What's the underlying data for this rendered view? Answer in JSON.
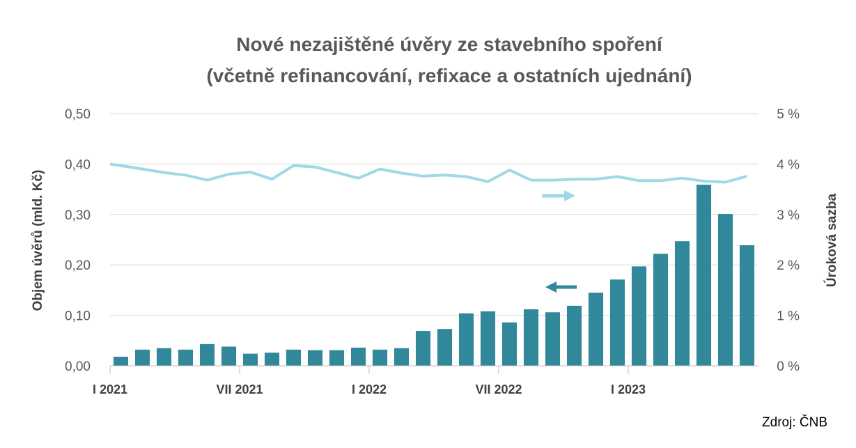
{
  "chart_data": {
    "type": "bar+line",
    "title_line1": "Nové nezajištěné úvěry ze stavebního spoření",
    "title_line2": "(včetně refinancování, refixace a ostatních ujednání)",
    "ylabel_left": "Objem úvěrů (mld. Kč)",
    "ylabel_right": "Úroková sazba",
    "source": "Zdroj: ČNB",
    "ylim_left": [
      0,
      0.5
    ],
    "ylim_right": [
      0,
      5
    ],
    "left_ticks": [
      "0,00",
      "0,10",
      "0,20",
      "0,30",
      "0,40",
      "0,50"
    ],
    "right_ticks": [
      "0 %",
      "1 %",
      "2 %",
      "3 %",
      "4 %",
      "5 %"
    ],
    "x_tick_labels": [
      {
        "index": 0,
        "label": "I 2021"
      },
      {
        "index": 6,
        "label": "VII 2021"
      },
      {
        "index": 12,
        "label": "I 2022"
      },
      {
        "index": 18,
        "label": "VII 2022"
      },
      {
        "index": 24,
        "label": "I 2023"
      }
    ],
    "grid": true,
    "colors": {
      "bars": "#31889a",
      "line": "#9fd8e6",
      "gridline": "#d9d9d9",
      "text": "#595959"
    },
    "series": [
      {
        "type": "bar",
        "axis": "left",
        "values": [
          0.018,
          0.032,
          0.035,
          0.032,
          0.043,
          0.038,
          0.024,
          0.026,
          0.032,
          0.031,
          0.031,
          0.036,
          0.032,
          0.035,
          0.069,
          0.073,
          0.104,
          0.108,
          0.086,
          0.112,
          0.106,
          0.119,
          0.145,
          0.171,
          0.197,
          0.222,
          0.247,
          0.359,
          0.301,
          0.239
        ]
      },
      {
        "type": "line",
        "axis": "right",
        "values": [
          4.0,
          3.9,
          3.83,
          3.78,
          3.68,
          3.8,
          3.84,
          3.7,
          3.97,
          3.94,
          3.83,
          3.72,
          3.9,
          3.82,
          3.76,
          3.78,
          3.75,
          3.65,
          3.88,
          3.68,
          3.68,
          3.7,
          3.7,
          3.75,
          3.67,
          3.67,
          3.72,
          3.66,
          3.64,
          3.76
        ]
      }
    ]
  }
}
